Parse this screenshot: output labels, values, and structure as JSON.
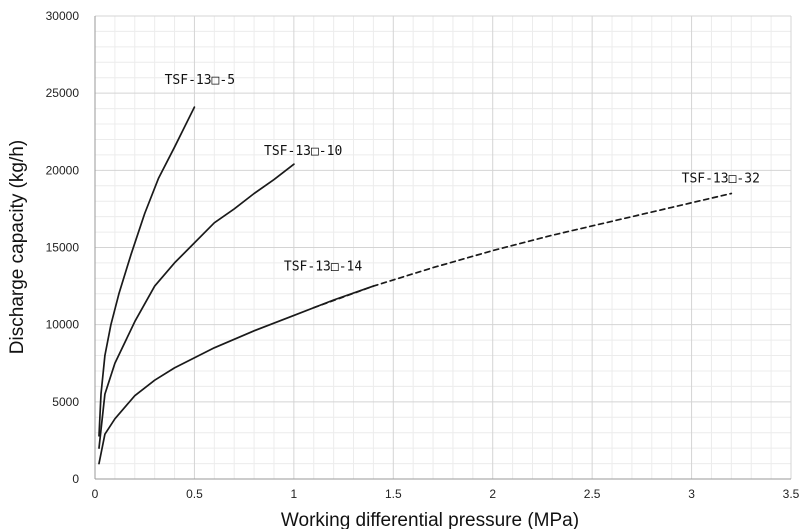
{
  "chart_data": {
    "type": "line",
    "xlabel": "Working differential pressure (MPa)",
    "ylabel": "Discharge capacity (kg/h)",
    "xlim": [
      0,
      3.5
    ],
    "ylim": [
      0,
      30000
    ],
    "x_ticks": [
      "0",
      "0.5",
      "1",
      "1.5",
      "2",
      "2.5",
      "3",
      "3.5"
    ],
    "y_ticks": [
      "0",
      "5000",
      "10000",
      "15000",
      "20000",
      "25000",
      "30000"
    ],
    "grid": true,
    "legend": "none",
    "series": [
      {
        "name": "TSF-13□-5",
        "style": "solid",
        "x": [
          0.02,
          0.03,
          0.05,
          0.08,
          0.12,
          0.18,
          0.25,
          0.32,
          0.4,
          0.5
        ],
        "y": [
          2800,
          5500,
          8000,
          10000,
          12000,
          14500,
          17200,
          19500,
          21500,
          24100
        ]
      },
      {
        "name": "TSF-13□-10",
        "style": "solid",
        "x": [
          0.02,
          0.05,
          0.1,
          0.2,
          0.3,
          0.4,
          0.5,
          0.6,
          0.7,
          0.8,
          0.9,
          1.0
        ],
        "y": [
          2000,
          5500,
          7500,
          10200,
          12500,
          14000,
          15300,
          16600,
          17500,
          18500,
          19400,
          20400
        ]
      },
      {
        "name": "TSF-13□-14",
        "style": "solid",
        "x": [
          0.02,
          0.05,
          0.1,
          0.2,
          0.3,
          0.4,
          0.6,
          0.8,
          1.0,
          1.2,
          1.4
        ],
        "y": [
          1000,
          2900,
          3900,
          5400,
          6400,
          7200,
          8500,
          9600,
          10600,
          11600,
          12500
        ]
      },
      {
        "name": "TSF-13□-32",
        "style": "dashed",
        "x": [
          1.1,
          1.4,
          1.7,
          2.0,
          2.3,
          2.6,
          2.9,
          3.2
        ],
        "y": [
          11100,
          12500,
          13700,
          14800,
          15800,
          16700,
          17600,
          18500
        ]
      }
    ],
    "annotations": [
      "TSF-13□-5",
      "TSF-13□-10",
      "TSF-13□-14",
      "TSF-13□-32"
    ],
    "colors": {
      "line": "#1a1a1a",
      "grid_major": "#d4d4d4",
      "grid_minor": "#ececec",
      "axis": "#9a9a9a"
    }
  }
}
